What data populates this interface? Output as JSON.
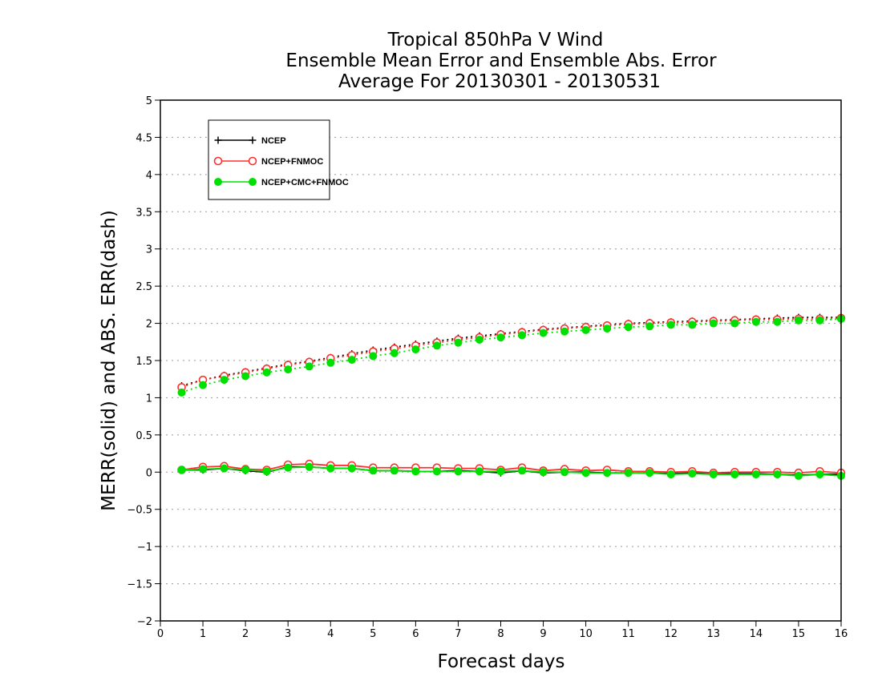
{
  "chart_data": {
    "type": "line",
    "title": [
      "Tropical 850hPa V Wind",
      "Ensemble Mean Error and Ensemble Abs. Error",
      "Average For 20130301 - 20130531"
    ],
    "xlabel": "Forecast days",
    "ylabel": "MERR(solid) and ABS. ERR(dash)",
    "xlim": [
      0,
      16
    ],
    "ylim": [
      -2,
      5
    ],
    "xticks": [
      "0",
      "1",
      "2",
      "3",
      "4",
      "5",
      "6",
      "7",
      "8",
      "9",
      "10",
      "11",
      "12",
      "13",
      "14",
      "15",
      "16"
    ],
    "yticks": [
      "5",
      "4.5",
      "4",
      "3.5",
      "3",
      "2.5",
      "2",
      "1.5",
      "1",
      "0.5",
      "0",
      "-0.5",
      "-1",
      "-1.5",
      "-2"
    ],
    "grid": true,
    "legend_position": "top-left",
    "x": [
      0.5,
      1,
      1.5,
      2,
      2.5,
      3,
      3.5,
      4,
      4.5,
      5,
      5.5,
      6,
      6.5,
      7,
      7.5,
      8,
      8.5,
      9,
      9.5,
      10,
      10.5,
      11,
      11.5,
      12,
      12.5,
      13,
      13.5,
      14,
      14.5,
      15,
      15.5,
      16
    ],
    "series": [
      {
        "name": "NCEP",
        "color": "#000000",
        "marker": "plus",
        "merr": [
          0.03,
          0.03,
          0.05,
          0.02,
          0.0,
          0.07,
          0.07,
          0.05,
          0.05,
          0.02,
          0.02,
          0.01,
          0.01,
          0.02,
          0.01,
          -0.01,
          0.02,
          -0.01,
          0.0,
          0.0,
          -0.01,
          -0.01,
          -0.01,
          -0.02,
          -0.01,
          -0.02,
          -0.02,
          -0.02,
          -0.03,
          -0.04,
          -0.03,
          -0.03
        ],
        "abs_err": [
          1.16,
          1.24,
          1.3,
          1.35,
          1.4,
          1.45,
          1.49,
          1.54,
          1.59,
          1.64,
          1.68,
          1.72,
          1.76,
          1.8,
          1.83,
          1.86,
          1.89,
          1.92,
          1.94,
          1.96,
          1.98,
          2.0,
          2.01,
          2.02,
          2.03,
          2.04,
          2.05,
          2.06,
          2.07,
          2.08,
          2.08,
          2.08
        ]
      },
      {
        "name": "NCEP+FNMOC",
        "color": "#ff3030",
        "marker": "open-circle",
        "merr": [
          0.03,
          0.07,
          0.08,
          0.04,
          0.03,
          0.1,
          0.11,
          0.09,
          0.09,
          0.06,
          0.06,
          0.06,
          0.06,
          0.05,
          0.05,
          0.03,
          0.06,
          0.02,
          0.04,
          0.02,
          0.03,
          0.01,
          0.01,
          0.0,
          0.01,
          -0.01,
          0.0,
          0.0,
          0.0,
          -0.01,
          0.01,
          -0.01
        ],
        "abs_err": [
          1.14,
          1.24,
          1.29,
          1.34,
          1.39,
          1.44,
          1.48,
          1.53,
          1.57,
          1.62,
          1.66,
          1.7,
          1.74,
          1.78,
          1.81,
          1.85,
          1.88,
          1.91,
          1.93,
          1.95,
          1.97,
          1.99,
          2.0,
          2.01,
          2.02,
          2.03,
          2.04,
          2.05,
          2.05,
          2.06,
          2.06,
          2.07
        ]
      },
      {
        "name": "NCEP+CMC+FNMOC",
        "color": "#00e000",
        "marker": "filled-circle",
        "merr": [
          0.03,
          0.04,
          0.05,
          0.03,
          0.01,
          0.06,
          0.07,
          0.05,
          0.05,
          0.02,
          0.02,
          0.01,
          0.01,
          0.01,
          0.01,
          0.01,
          0.02,
          0.0,
          0.0,
          -0.01,
          -0.01,
          -0.01,
          -0.01,
          -0.03,
          -0.02,
          -0.03,
          -0.03,
          -0.03,
          -0.03,
          -0.05,
          -0.03,
          -0.05
        ],
        "abs_err": [
          1.07,
          1.17,
          1.24,
          1.29,
          1.34,
          1.38,
          1.42,
          1.47,
          1.51,
          1.56,
          1.6,
          1.65,
          1.7,
          1.74,
          1.78,
          1.81,
          1.84,
          1.87,
          1.89,
          1.91,
          1.93,
          1.95,
          1.96,
          1.98,
          1.98,
          2.0,
          2.0,
          2.02,
          2.02,
          2.04,
          2.04,
          2.06
        ]
      }
    ]
  }
}
